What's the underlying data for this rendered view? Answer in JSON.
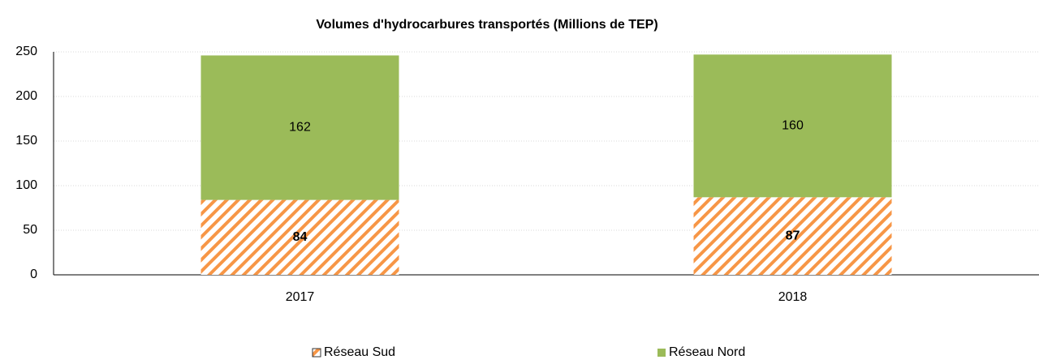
{
  "chart_data": {
    "type": "stacked_bar",
    "title": "Volumes d'hydrocarbures transportés (Millions de TEP)",
    "categories": [
      "2017",
      "2018"
    ],
    "series": [
      {
        "name": "Réseau Sud",
        "color": "#f79646",
        "hatch": true,
        "label_bold": true,
        "values": [
          84,
          87
        ]
      },
      {
        "name": "Réseau Nord",
        "color": "#9bbb59",
        "hatch": false,
        "label_bold": false,
        "values": [
          162,
          160
        ]
      }
    ],
    "ylim": [
      0,
      250
    ],
    "yticks": [
      0,
      50,
      100,
      150,
      200,
      250
    ],
    "grid": true,
    "legend": "bottom"
  }
}
